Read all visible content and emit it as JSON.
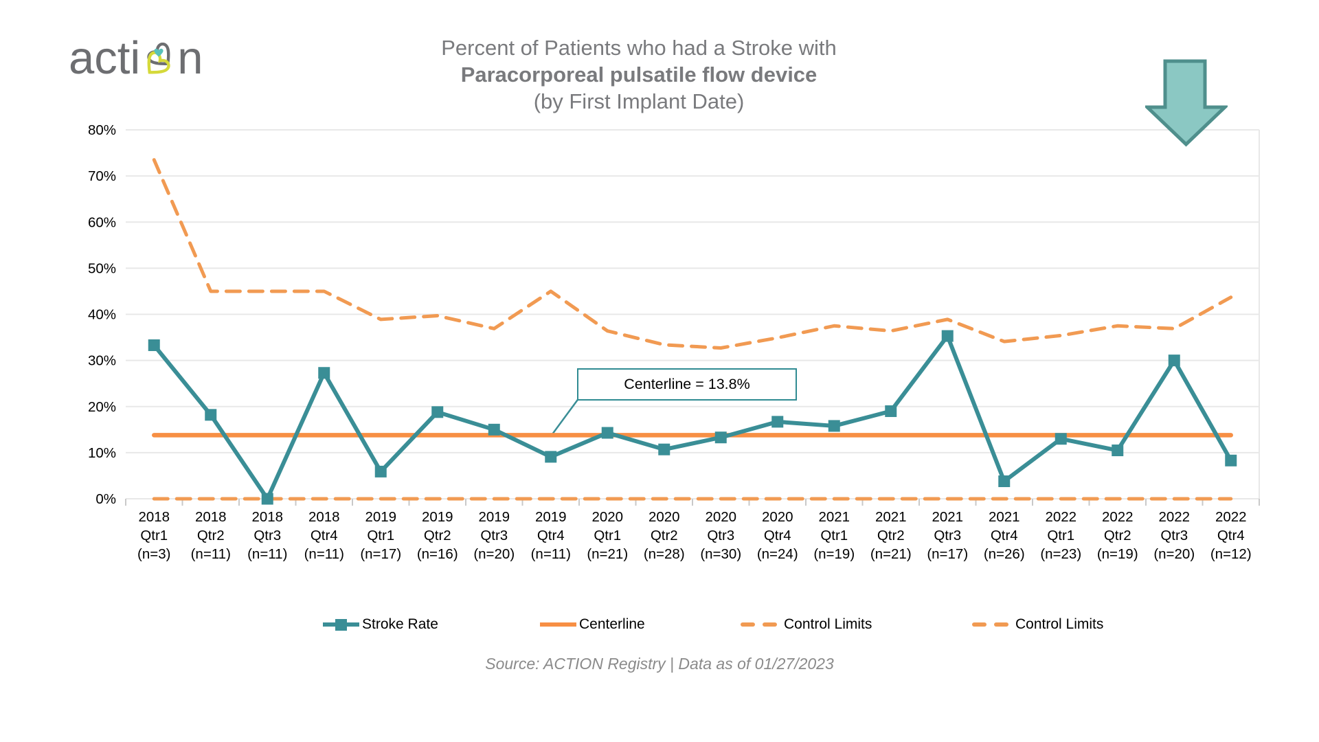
{
  "logo": {
    "text_left": "acti",
    "text_right": "n",
    "colors": {
      "gray": "#6D6E71",
      "teal": "#58C1BA",
      "yellow": "#D5D93A"
    }
  },
  "header": {
    "title_line1": "Percent of Patients who had a Stroke with",
    "title_line2": "Paracorporeal pulsatile flow device",
    "title_line3": "(by First Implant Date)",
    "title_color": "#797A7D"
  },
  "arrow_icon": {
    "fill": "#8BC8C3",
    "stroke": "#4F8F8C"
  },
  "annotation": {
    "text": "Centerline = 13.8%"
  },
  "legend": {
    "items": [
      {
        "label": "Stroke Rate",
        "type": "line-marker",
        "color": "#3A8E96"
      },
      {
        "label": "Centerline",
        "type": "solid",
        "color": "#F78F44"
      },
      {
        "label": "Control Limits",
        "type": "dashed",
        "color": "#F19A52"
      },
      {
        "label": "Control Limits",
        "type": "dashed",
        "color": "#F19A52"
      }
    ]
  },
  "footer": {
    "source": "Source: ACTION Registry  |  Data as of 01/27/2023"
  },
  "chart_data": {
    "type": "line",
    "title": "Percent of Patients who had a Stroke with Paracorporeal pulsatile flow device (by First Implant Date)",
    "categories": [
      {
        "year": "2018",
        "quarter": "Qtr1",
        "n": 3,
        "n_label": "(n=3)"
      },
      {
        "year": "2018",
        "quarter": "Qtr2",
        "n": 11,
        "n_label": "(n=11)"
      },
      {
        "year": "2018",
        "quarter": "Qtr3",
        "n": 11,
        "n_label": "(n=11)"
      },
      {
        "year": "2018",
        "quarter": "Qtr4",
        "n": 11,
        "n_label": "(n=11)"
      },
      {
        "year": "2019",
        "quarter": "Qtr1",
        "n": 17,
        "n_label": "(n=17)"
      },
      {
        "year": "2019",
        "quarter": "Qtr2",
        "n": 16,
        "n_label": "(n=16)"
      },
      {
        "year": "2019",
        "quarter": "Qtr3",
        "n": 20,
        "n_label": "(n=20)"
      },
      {
        "year": "2019",
        "quarter": "Qtr4",
        "n": 11,
        "n_label": "(n=11)"
      },
      {
        "year": "2020",
        "quarter": "Qtr1",
        "n": 21,
        "n_label": "(n=21)"
      },
      {
        "year": "2020",
        "quarter": "Qtr2",
        "n": 28,
        "n_label": "(n=28)"
      },
      {
        "year": "2020",
        "quarter": "Qtr3",
        "n": 30,
        "n_label": "(n=30)"
      },
      {
        "year": "2020",
        "quarter": "Qtr4",
        "n": 24,
        "n_label": "(n=24)"
      },
      {
        "year": "2021",
        "quarter": "Qtr1",
        "n": 19,
        "n_label": "(n=19)"
      },
      {
        "year": "2021",
        "quarter": "Qtr2",
        "n": 21,
        "n_label": "(n=21)"
      },
      {
        "year": "2021",
        "quarter": "Qtr3",
        "n": 17,
        "n_label": "(n=17)"
      },
      {
        "year": "2021",
        "quarter": "Qtr4",
        "n": 26,
        "n_label": "(n=26)"
      },
      {
        "year": "2022",
        "quarter": "Qtr1",
        "n": 23,
        "n_label": "(n=23)"
      },
      {
        "year": "2022",
        "quarter": "Qtr2",
        "n": 19,
        "n_label": "(n=19)"
      },
      {
        "year": "2022",
        "quarter": "Qtr3",
        "n": 20,
        "n_label": "(n=20)"
      },
      {
        "year": "2022",
        "quarter": "Qtr4",
        "n": 12,
        "n_label": "(n=12)"
      }
    ],
    "series": [
      {
        "name": "Stroke Rate",
        "values": [
          33.3,
          18.2,
          0.0,
          27.3,
          5.9,
          18.8,
          15.0,
          9.1,
          14.3,
          10.7,
          13.3,
          16.7,
          15.8,
          19.0,
          35.3,
          3.8,
          13.0,
          10.5,
          30.0,
          8.3
        ]
      },
      {
        "name": "Centerline",
        "value": 13.8
      },
      {
        "name": "Control Limits (upper)",
        "values": [
          73.5,
          45.0,
          45.0,
          45.0,
          38.9,
          39.7,
          36.9,
          45.0,
          36.4,
          33.4,
          32.7,
          34.9,
          37.5,
          36.4,
          38.9,
          34.1,
          35.4,
          37.5,
          36.9,
          43.7
        ]
      },
      {
        "name": "Control Limits (lower)",
        "values": [
          0,
          0,
          0,
          0,
          0,
          0,
          0,
          0,
          0,
          0,
          0,
          0,
          0,
          0,
          0,
          0,
          0,
          0,
          0,
          0
        ]
      }
    ],
    "ylim": [
      0,
      80
    ],
    "ytick_step": 10,
    "ytick_format": "percent",
    "grid": "horizontal",
    "legend_position": "bottom",
    "colors": {
      "stroke": "#3A8E96",
      "centerline": "#F78F44",
      "control": "#F19A52",
      "grid": "#E8E8E8",
      "tick": "#C9C9C9",
      "axis_text": "#000000"
    }
  }
}
